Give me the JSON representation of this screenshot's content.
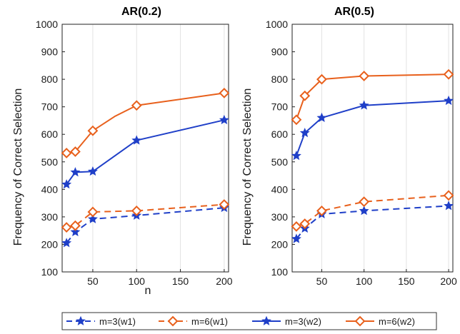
{
  "chart_data": [
    {
      "type": "line",
      "title": "AR(0.2)",
      "xlabel": "n",
      "ylabel": "Frequency of Correct Selection",
      "xlim": [
        15,
        205
      ],
      "ylim": [
        100,
        1000
      ],
      "xticks": [
        50,
        100,
        150,
        200
      ],
      "yticks": [
        100,
        200,
        300,
        400,
        500,
        600,
        700,
        800,
        900,
        1000
      ],
      "grid": "vertical",
      "series": [
        {
          "name": "m=3(w1)",
          "x": [
            20,
            30,
            50,
            100,
            200
          ],
          "values": [
            205,
            245,
            292,
            305,
            333
          ],
          "color": "#1f3fc8",
          "line": "dashed",
          "marker": "star"
        },
        {
          "name": "m=6(w1)",
          "x": [
            20,
            30,
            50,
            100,
            200
          ],
          "values": [
            262,
            268,
            318,
            322,
            345
          ],
          "color": "#e8601c",
          "line": "dashed",
          "marker": "diamond"
        },
        {
          "name": "m=3(w2)",
          "x": [
            20,
            30,
            50,
            100,
            200
          ],
          "values": [
            418,
            462,
            465,
            578,
            652
          ],
          "color": "#1f3fc8",
          "line": "solid",
          "marker": "star"
        },
        {
          "name": "m=6(w2)",
          "x": [
            20,
            30,
            50,
            75,
            100,
            200
          ],
          "values": [
            532,
            537,
            613,
            665,
            705,
            750
          ],
          "color": "#e8601c",
          "line": "solid",
          "marker": "diamond",
          "marker_x": [
            20,
            30,
            50,
            100,
            200
          ]
        }
      ]
    },
    {
      "type": "line",
      "title": "AR(0.5)",
      "xlabel": "",
      "ylabel": "Frequency of Correct Selection",
      "xlim": [
        15,
        205
      ],
      "ylim": [
        100,
        1000
      ],
      "xticks": [
        50,
        100,
        150,
        200
      ],
      "yticks": [
        100,
        200,
        300,
        400,
        500,
        600,
        700,
        800,
        900,
        1000
      ],
      "grid": "vertical",
      "series": [
        {
          "name": "m=3(w1)",
          "x": [
            20,
            30,
            50,
            100,
            200
          ],
          "values": [
            220,
            258,
            310,
            322,
            340
          ],
          "color": "#1f3fc8",
          "line": "dashed",
          "marker": "star"
        },
        {
          "name": "m=6(w1)",
          "x": [
            20,
            30,
            50,
            100,
            200
          ],
          "values": [
            265,
            275,
            322,
            355,
            378
          ],
          "color": "#e8601c",
          "line": "dashed",
          "marker": "diamond"
        },
        {
          "name": "m=3(w2)",
          "x": [
            20,
            30,
            50,
            100,
            200
          ],
          "values": [
            522,
            605,
            660,
            705,
            722
          ],
          "color": "#1f3fc8",
          "line": "solid",
          "marker": "star"
        },
        {
          "name": "m=6(w2)",
          "x": [
            20,
            30,
            50,
            100,
            200
          ],
          "values": [
            653,
            740,
            800,
            812,
            818
          ],
          "color": "#e8601c",
          "line": "solid",
          "marker": "diamond"
        }
      ]
    }
  ],
  "legend": {
    "placement": "bottom",
    "entries": [
      {
        "label": "m=3(w1)",
        "color": "#1f3fc8",
        "line": "dashed",
        "marker": "star"
      },
      {
        "label": "m=6(w1)",
        "color": "#e8601c",
        "line": "dashed",
        "marker": "diamond"
      },
      {
        "label": "m=3(w2)",
        "color": "#1f3fc8",
        "line": "solid",
        "marker": "star"
      },
      {
        "label": "m=6(w2)",
        "color": "#e8601c",
        "line": "solid",
        "marker": "diamond"
      }
    ]
  }
}
